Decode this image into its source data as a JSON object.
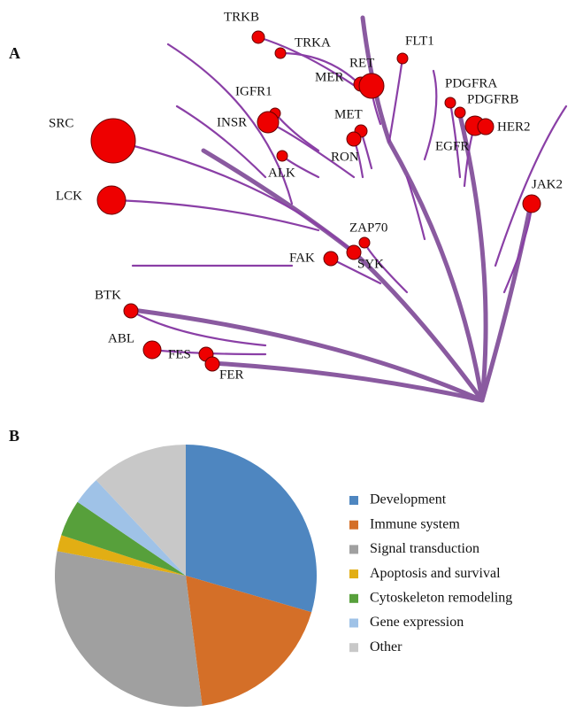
{
  "panel_labels": [
    "A",
    "B"
  ],
  "kinome": {
    "kinases": [
      "TRKB",
      "TRKA",
      "FLT1",
      "RET",
      "MER",
      "PDGFRA",
      "PDGFRB",
      "IGFR1",
      "SRC",
      "INSR",
      "MET",
      "HER2",
      "RON",
      "EGFR",
      "ALK",
      "LCK",
      "JAK2",
      "ZAP70",
      "FAK",
      "SYK",
      "BTK",
      "ABL",
      "FES",
      "FER"
    ]
  },
  "chart_data": {
    "type": "pie",
    "categories": [
      "Development",
      "Immune system",
      "Signal transduction",
      "Apoptosis and survival",
      "Cytoskeleton remodeling",
      "Gene expression",
      "Other"
    ],
    "values": [
      29.5,
      18.5,
      30,
      2,
      4.5,
      3.5,
      12
    ],
    "colors": [
      "#4e86c0",
      "#d46f28",
      "#a0a0a0",
      "#e2ae14",
      "#57a03b",
      "#9fc2e7",
      "#c8c8c8"
    ],
    "legend": "right"
  }
}
